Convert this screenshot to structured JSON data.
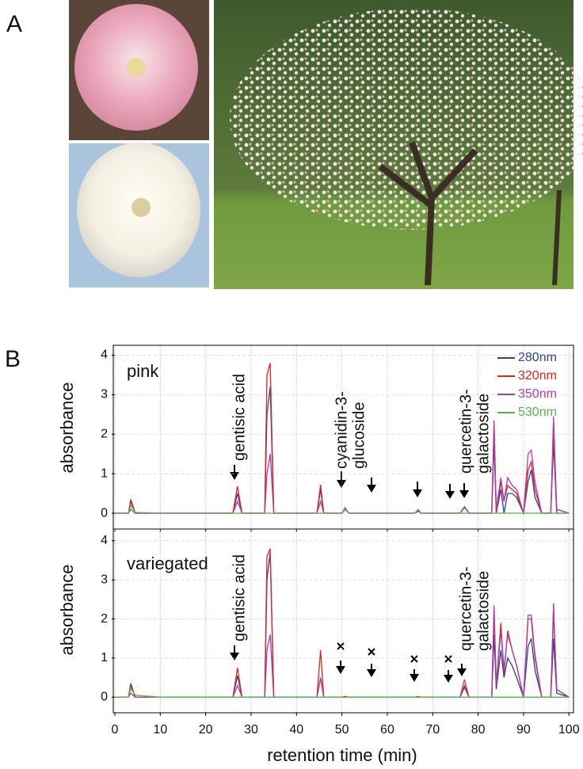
{
  "panel_labels": [
    "A",
    "B"
  ],
  "chart_data": [
    {
      "type": "line",
      "label": "pink",
      "ylabel": "absorbance",
      "annotations": [
        [
          "gentisic acid"
        ],
        [
          "cyanidin-3-",
          "glucoside"
        ],
        [
          "quercetin-3-",
          "galactoside"
        ]
      ],
      "x": [
        0,
        3,
        3.5,
        4.5,
        10,
        26,
        27,
        28,
        33,
        33.5,
        34.2,
        35,
        44.5,
        45.3,
        46,
        50,
        50.7,
        51.5,
        66,
        66.8,
        67.5,
        76,
        77,
        78,
        83,
        83.5,
        84,
        85,
        85.7,
        86.5,
        87.5,
        88.5,
        90,
        91,
        91.7,
        92.5,
        94,
        96,
        96.6,
        97.3,
        100
      ],
      "series": [
        {
          "name": "280nm",
          "color": "#2e3f9e",
          "values": [
            0,
            0,
            0.35,
            0,
            0,
            0,
            0.5,
            0,
            0,
            2.5,
            3.2,
            0,
            0,
            0.6,
            0,
            0,
            0.1,
            0,
            0,
            0.05,
            0,
            0,
            0.15,
            0,
            0,
            1.8,
            0,
            0.6,
            0,
            0.5,
            0.5,
            0.4,
            0,
            0.8,
            1.1,
            0.4,
            0,
            0,
            1.8,
            0,
            0
          ]
        },
        {
          "name": "320nm",
          "color": "#e0251b",
          "values": [
            0,
            0,
            0.3,
            0,
            0,
            0,
            0.68,
            0,
            0,
            3.5,
            3.8,
            0,
            0,
            0.72,
            0,
            0,
            0.12,
            0,
            0,
            0.06,
            0,
            0,
            0.17,
            0,
            0,
            2.2,
            0,
            0.8,
            0.3,
            0.7,
            0.6,
            0.5,
            0,
            1.1,
            1.3,
            0.6,
            0,
            0,
            2.1,
            0.1,
            0
          ]
        },
        {
          "name": "350nm",
          "color": "#b03ca8",
          "values": [
            0,
            0,
            0.1,
            0,
            0,
            0,
            0.3,
            0,
            0,
            1,
            1.5,
            0,
            0,
            0.3,
            0,
            0,
            0.1,
            0,
            0,
            0.05,
            0,
            0,
            0.16,
            0,
            0,
            2.35,
            0.1,
            0.9,
            0.3,
            0.9,
            0.7,
            0.6,
            0,
            1.5,
            1.6,
            0.8,
            0,
            0,
            2.45,
            0.1,
            0
          ]
        },
        {
          "name": "530nm",
          "color": "#4fb848",
          "values": [
            0,
            0,
            0.2,
            0.02,
            0,
            0,
            0,
            0,
            0,
            0,
            0,
            0,
            0,
            0,
            0,
            0,
            0.15,
            0,
            0,
            0.1,
            0,
            0,
            0,
            0,
            0,
            0,
            0,
            0,
            0,
            0,
            0,
            0,
            0,
            0,
            0,
            0,
            0,
            0,
            0,
            0,
            0
          ]
        }
      ],
      "xlim": [
        0,
        101
      ],
      "ylim": [
        -0.4,
        4.25
      ],
      "xticks": [
        0,
        10,
        20,
        30,
        40,
        50,
        60,
        70,
        80,
        90,
        100
      ],
      "yticks": [
        0,
        1,
        2,
        3,
        4
      ],
      "grid": true,
      "legend": "upper right"
    },
    {
      "type": "line",
      "label": "variegated",
      "ylabel": "absorbance",
      "xlabel": "retention time (min)",
      "annotations": [
        [
          "gentisic acid"
        ],
        [
          "quercetin-3-",
          "galactoside"
        ]
      ],
      "x": [
        0,
        3,
        3.5,
        4.5,
        10,
        26,
        27,
        28,
        33,
        33.5,
        34.2,
        35,
        44.5,
        45.3,
        46,
        50,
        50.7,
        51.5,
        66,
        66.8,
        67.5,
        76,
        77,
        78,
        83,
        83.5,
        84,
        85,
        85.7,
        86.5,
        87.5,
        88.5,
        90,
        91,
        91.7,
        92.5,
        94,
        96,
        96.6,
        97.3,
        100
      ],
      "series": [
        {
          "color": "#2e3f9e",
          "values": [
            0,
            0,
            0.35,
            0,
            0,
            0,
            0.55,
            0,
            0,
            3.0,
            3.7,
            0,
            0,
            0.5,
            0,
            0,
            0,
            0,
            0,
            0,
            0,
            0,
            0.25,
            0,
            0,
            1.6,
            0.2,
            1.2,
            0.5,
            1.0,
            0.8,
            0.5,
            0,
            1.3,
            1.5,
            0.7,
            0,
            0,
            1.5,
            0.1,
            0
          ]
        },
        {
          "color": "#e0251b",
          "values": [
            0,
            0,
            0.3,
            0,
            0,
            0,
            0.75,
            0,
            0,
            3.6,
            3.8,
            0,
            0,
            1.2,
            0,
            0,
            0.02,
            0,
            0,
            0.02,
            0,
            0,
            0.3,
            0,
            0,
            2.2,
            0.3,
            1.9,
            0.6,
            1.7,
            1.2,
            0.8,
            0,
            2.0,
            2.0,
            1.0,
            0,
            0,
            2.2,
            0.2,
            0
          ]
        },
        {
          "color": "#b03ca8",
          "values": [
            0,
            0,
            0.1,
            0,
            0,
            0,
            0.3,
            0,
            0,
            1.2,
            1.6,
            0,
            0,
            0.5,
            0,
            0,
            0,
            0,
            0,
            0,
            0,
            0,
            0.45,
            0,
            0,
            2.35,
            0.3,
            1.7,
            0.7,
            1.6,
            1.2,
            0.8,
            0,
            2.1,
            2.1,
            1.1,
            0,
            0,
            2.4,
            0.2,
            0
          ]
        },
        {
          "color": "#4fb848",
          "values": [
            0,
            0,
            0.22,
            0.05,
            0,
            0,
            0,
            0,
            0,
            0,
            0,
            0,
            0,
            0,
            0,
            0,
            0,
            0,
            0,
            0,
            0,
            0,
            0,
            0,
            0,
            0,
            0,
            0,
            0,
            0,
            0,
            0,
            0,
            0,
            0,
            0,
            0,
            0,
            0,
            0,
            0
          ]
        }
      ],
      "xlim": [
        0,
        101
      ],
      "ylim": [
        -0.4,
        4.3
      ],
      "xticks": [
        0,
        10,
        20,
        30,
        40,
        50,
        60,
        70,
        80,
        90,
        100
      ],
      "yticks": [
        0,
        1,
        2,
        3,
        4
      ],
      "grid": true
    }
  ]
}
